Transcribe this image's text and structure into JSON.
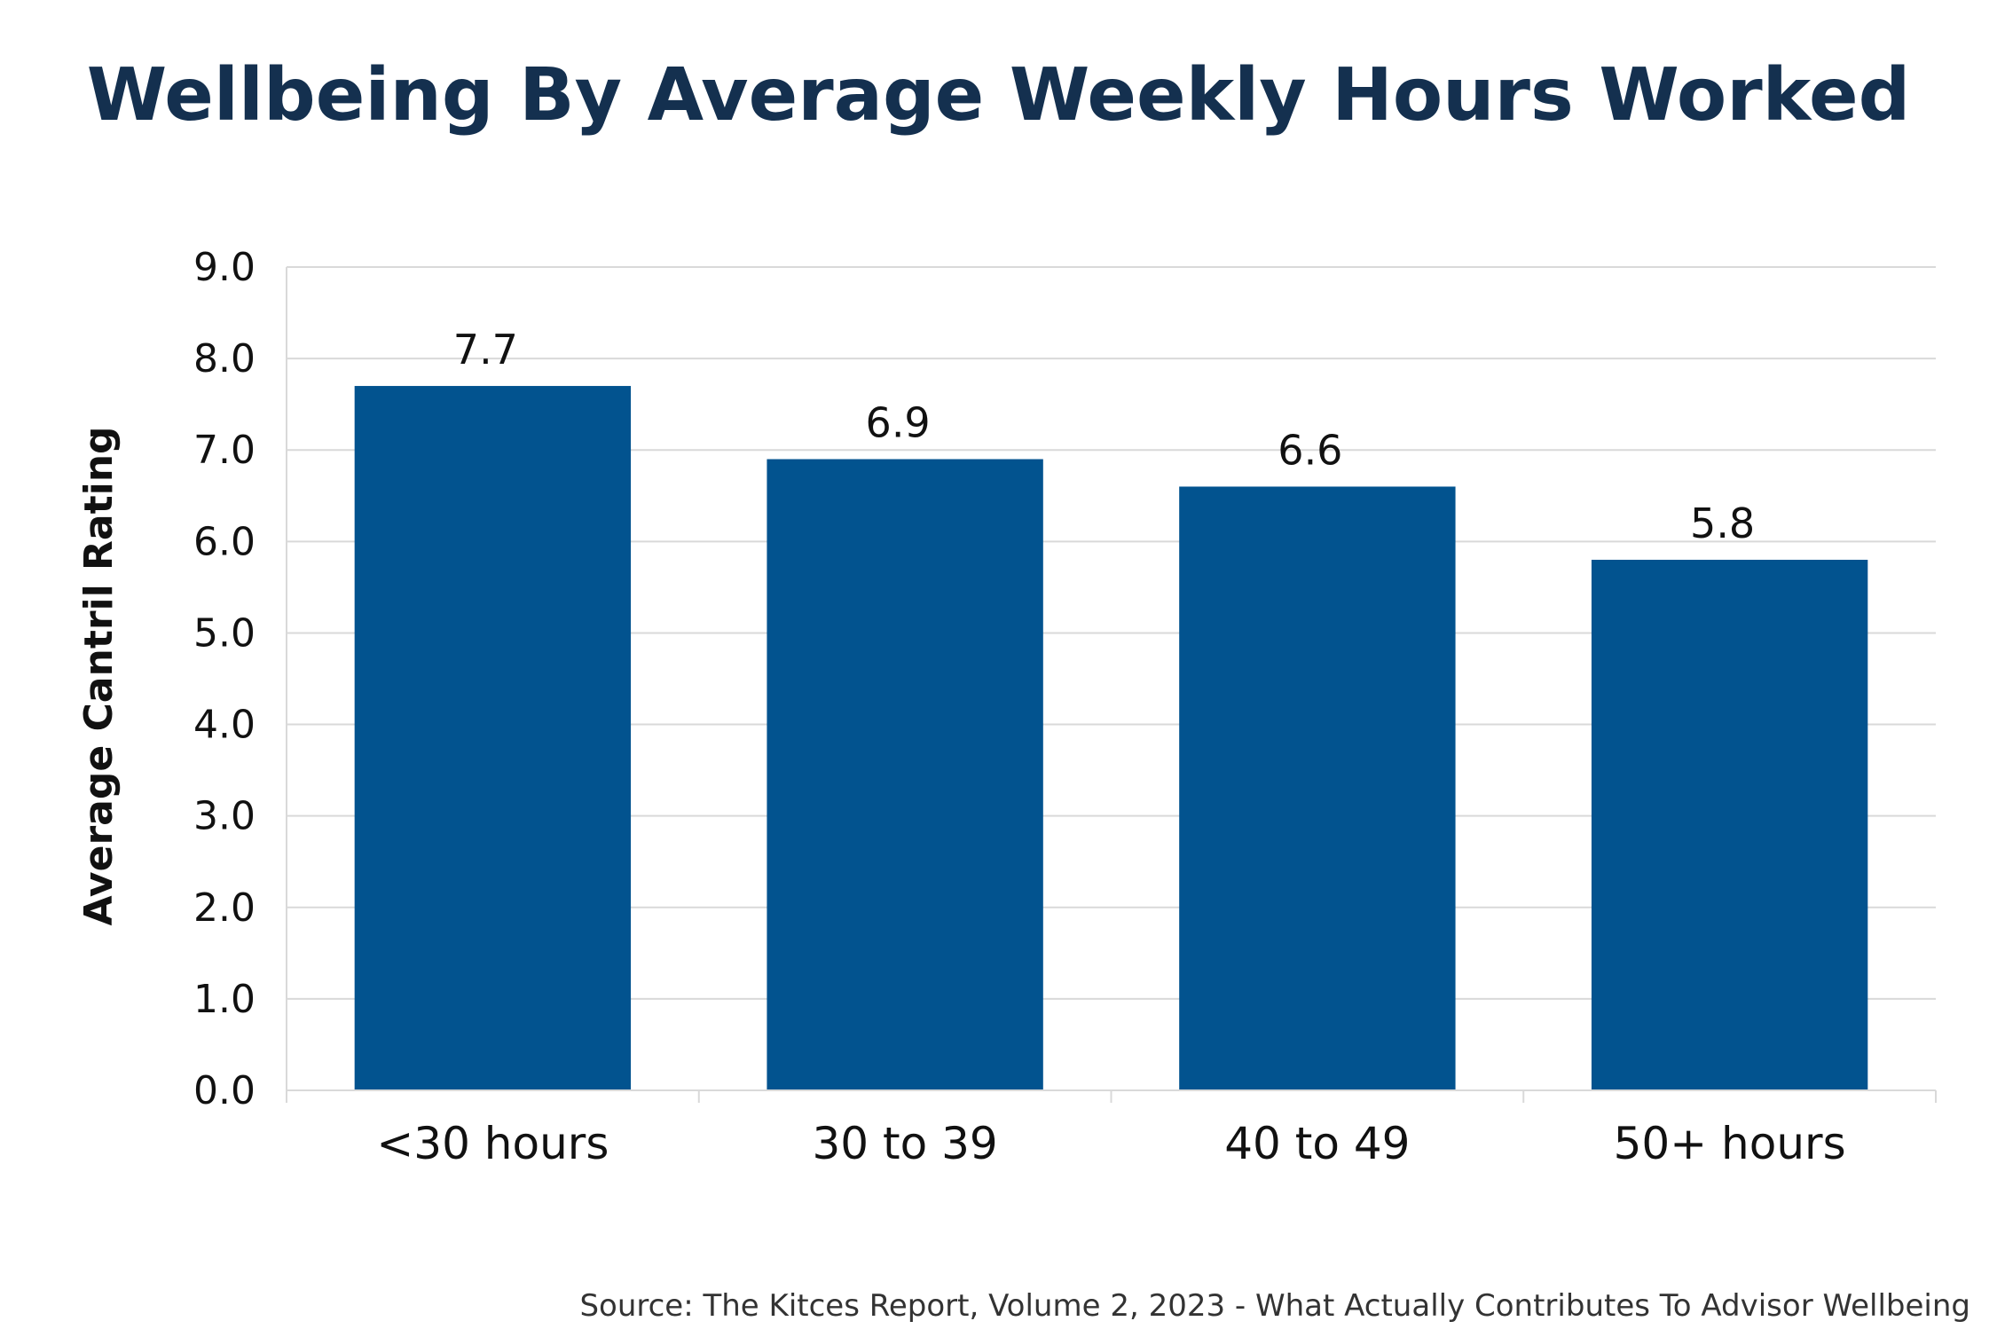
{
  "title": "Wellbeing By Average Weekly Hours Worked",
  "source": "Source: The Kitces Report, Volume 2, 2023 - What Actually Contributes To Advisor Wellbeing",
  "colors": {
    "bar": "#02538f",
    "title": "#14304f",
    "grid": "#d9d9d9"
  },
  "chart_data": {
    "type": "bar",
    "title": "Wellbeing By Average Weekly Hours Worked",
    "xlabel": "",
    "ylabel": "Average Cantril Rating",
    "categories": [
      "<30 hours",
      "30 to 39",
      "40 to 49",
      "50+ hours"
    ],
    "values": [
      7.7,
      6.9,
      6.6,
      5.8
    ],
    "value_labels": [
      "7.7",
      "6.9",
      "6.6",
      "5.8"
    ],
    "ylim": [
      0,
      9
    ],
    "yticks": [
      "0.0",
      "1.0",
      "2.0",
      "3.0",
      "4.0",
      "5.0",
      "6.0",
      "7.0",
      "8.0",
      "9.0"
    ],
    "grid": true,
    "legend": "none"
  }
}
